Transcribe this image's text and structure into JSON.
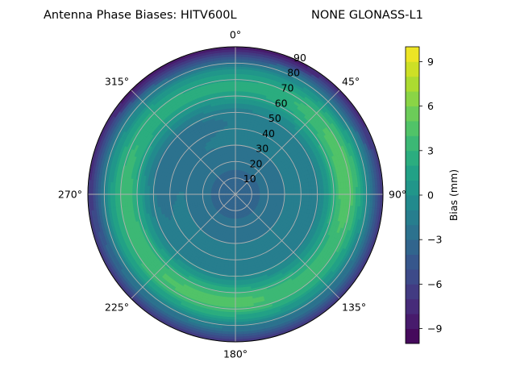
{
  "chart_data": {
    "type": "polar contour",
    "title": "Antenna Phase Biases: HITV600L",
    "subtitle": "NONE GLONASS-L1",
    "angular_ticks": [
      "0°",
      "45°",
      "90°",
      "135°",
      "180°",
      "225°",
      "270°",
      "315°"
    ],
    "radial_ticks": [
      "10",
      "20",
      "30",
      "40",
      "50",
      "60",
      "70",
      "80",
      "90"
    ],
    "radial_range": [
      0,
      90
    ],
    "grid": true,
    "colormap": "viridis",
    "colorbar": {
      "label": "Bias (mm)",
      "range": [
        -10,
        10
      ],
      "ticks": [
        "−9",
        "−6",
        "−3",
        "0",
        "3",
        "6",
        "9"
      ],
      "levels": 20
    },
    "field_description_zones": [
      {
        "region": "center (zenith 0-15)",
        "bias_mm": -3.5
      },
      {
        "region": "ring zenith 25-45",
        "bias_mm": -2
      },
      {
        "region": "ring zenith 60-75",
        "bias_mm": 2.5
      },
      {
        "region": "east sector zenith 60-80",
        "bias_mm": 5
      },
      {
        "region": "south sector zenith 60-75",
        "bias_mm": 4
      },
      {
        "region": "west sector zenith 60-75",
        "bias_mm": 3.5
      },
      {
        "region": "north edge zenith 85-90",
        "bias_mm": -5
      }
    ]
  }
}
